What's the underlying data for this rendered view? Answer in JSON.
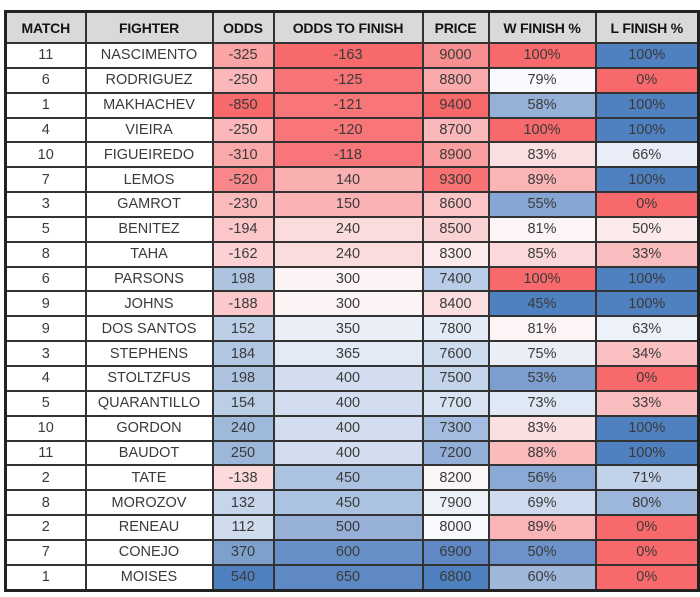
{
  "chart_data": {
    "type": "table",
    "title": "Fighter odds and finish percentages heatmap table",
    "legend_colors": {
      "low_extreme_red": "#F8696B",
      "midpoint_white": "#FCFCFF",
      "high_extreme_blue": "#4F80C0",
      "header_gray": "#D9D9D9"
    },
    "columns": [
      {
        "key": "match",
        "label": "MATCH"
      },
      {
        "key": "fighter",
        "label": "FIGHTER"
      },
      {
        "key": "odds",
        "label": "ODDS"
      },
      {
        "key": "odds_to_finish",
        "label": "ODDS TO FINISH"
      },
      {
        "key": "price",
        "label": "PRICE"
      },
      {
        "key": "w_finish",
        "label": "W FINISH %"
      },
      {
        "key": "l_finish",
        "label": "L FINISH %"
      }
    ],
    "rows": [
      {
        "cells": [
          {
            "v": "11",
            "bg": "#FFFFFF"
          },
          {
            "v": "NASCIMENTO",
            "bg": "#FFFFFF"
          },
          {
            "v": "-325",
            "bg": "#FAA4A6"
          },
          {
            "v": "-163",
            "bg": "#F8696B"
          },
          {
            "v": "9000",
            "bg": "#F98E90"
          },
          {
            "v": "100%",
            "bg": "#F8696B"
          },
          {
            "v": "100%",
            "bg": "#4F80C0"
          }
        ]
      },
      {
        "cells": [
          {
            "v": "6",
            "bg": "#FFFFFF"
          },
          {
            "v": "RODRIGUEZ",
            "bg": "#FFFFFF"
          },
          {
            "v": "-250",
            "bg": "#FBB7B9"
          },
          {
            "v": "-125",
            "bg": "#F87376"
          },
          {
            "v": "8800",
            "bg": "#FAAAAC"
          },
          {
            "v": "79%",
            "bg": "#F8FAFD"
          },
          {
            "v": "0%",
            "bg": "#F8696B"
          }
        ]
      },
      {
        "cells": [
          {
            "v": "1",
            "bg": "#FFFFFF"
          },
          {
            "v": "MAKHACHEV",
            "bg": "#FFFFFF"
          },
          {
            "v": "-850",
            "bg": "#F8696B"
          },
          {
            "v": "-121",
            "bg": "#F87578"
          },
          {
            "v": "9400",
            "bg": "#F8696B"
          },
          {
            "v": "58%",
            "bg": "#95B1D8"
          },
          {
            "v": "100%",
            "bg": "#4F80C0"
          }
        ]
      },
      {
        "cells": [
          {
            "v": "4",
            "bg": "#FFFFFF"
          },
          {
            "v": "VIEIRA",
            "bg": "#FFFFFF"
          },
          {
            "v": "-250",
            "bg": "#FBB7B9"
          },
          {
            "v": "-120",
            "bg": "#F87578"
          },
          {
            "v": "8700",
            "bg": "#FAB8BA"
          },
          {
            "v": "100%",
            "bg": "#F8696B"
          },
          {
            "v": "100%",
            "bg": "#4F80C0"
          }
        ]
      },
      {
        "cells": [
          {
            "v": "10",
            "bg": "#FFFFFF"
          },
          {
            "v": "FIGUEIREDO",
            "bg": "#FFFFFF"
          },
          {
            "v": "-310",
            "bg": "#FAA9AB"
          },
          {
            "v": "-118",
            "bg": "#F87679"
          },
          {
            "v": "8900",
            "bg": "#FA9EA0"
          },
          {
            "v": "83%",
            "bg": "#FBE0E2"
          },
          {
            "v": "66%",
            "bg": "#E8EDF8"
          }
        ]
      },
      {
        "cells": [
          {
            "v": "7",
            "bg": "#FFFFFF"
          },
          {
            "v": "LEMOS",
            "bg": "#FFFFFF"
          },
          {
            "v": "-520",
            "bg": "#F98688"
          },
          {
            "v": "140",
            "bg": "#FAAFB1"
          },
          {
            "v": "9300",
            "bg": "#F87173"
          },
          {
            "v": "89%",
            "bg": "#FAB4B6"
          },
          {
            "v": "100%",
            "bg": "#4F80C0"
          }
        ]
      },
      {
        "cells": [
          {
            "v": "3",
            "bg": "#FFFFFF"
          },
          {
            "v": "GAMROT",
            "bg": "#FFFFFF"
          },
          {
            "v": "-230",
            "bg": "#FBBBBD"
          },
          {
            "v": "150",
            "bg": "#FAB2B4"
          },
          {
            "v": "8600",
            "bg": "#FBC4C6"
          },
          {
            "v": "55%",
            "bg": "#86A6D3"
          },
          {
            "v": "0%",
            "bg": "#F8696B"
          }
        ]
      },
      {
        "cells": [
          {
            "v": "5",
            "bg": "#FFFFFF"
          },
          {
            "v": "BENITEZ",
            "bg": "#FFFFFF"
          },
          {
            "v": "-194",
            "bg": "#FBC7C9"
          },
          {
            "v": "240",
            "bg": "#FBDCDD"
          },
          {
            "v": "8500",
            "bg": "#FBD2D3"
          },
          {
            "v": "81%",
            "bg": "#FCF4F5"
          },
          {
            "v": "50%",
            "bg": "#FBEBEC"
          }
        ]
      },
      {
        "cells": [
          {
            "v": "8",
            "bg": "#FFFFFF"
          },
          {
            "v": "TAHA",
            "bg": "#FFFFFF"
          },
          {
            "v": "-162",
            "bg": "#FCD1D3"
          },
          {
            "v": "240",
            "bg": "#FBDCDD"
          },
          {
            "v": "8300",
            "bg": "#FCEBEC"
          },
          {
            "v": "85%",
            "bg": "#FBD8D9"
          },
          {
            "v": "33%",
            "bg": "#FABDBF"
          }
        ]
      },
      {
        "cells": [
          {
            "v": "6",
            "bg": "#FFFFFF"
          },
          {
            "v": "PARSONS",
            "bg": "#FFFFFF"
          },
          {
            "v": "198",
            "bg": "#ADC3E0"
          },
          {
            "v": "300",
            "bg": "#FCF3F4"
          },
          {
            "v": "7400",
            "bg": "#B9CDE8"
          },
          {
            "v": "100%",
            "bg": "#F8696B"
          },
          {
            "v": "100%",
            "bg": "#4F80C0"
          }
        ]
      },
      {
        "cells": [
          {
            "v": "9",
            "bg": "#FFFFFF"
          },
          {
            "v": "JOHNS",
            "bg": "#FFFFFF"
          },
          {
            "v": "-188",
            "bg": "#FBC9CB"
          },
          {
            "v": "300",
            "bg": "#FCF3F4"
          },
          {
            "v": "8400",
            "bg": "#FBDEDF"
          },
          {
            "v": "45%",
            "bg": "#4F80C0"
          },
          {
            "v": "100%",
            "bg": "#4F80C0"
          }
        ]
      },
      {
        "cells": [
          {
            "v": "9",
            "bg": "#FFFFFF"
          },
          {
            "v": "DOS SANTOS",
            "bg": "#FFFFFF"
          },
          {
            "v": "152",
            "bg": "#BDCFE6"
          },
          {
            "v": "350",
            "bg": "#E9EEF7"
          },
          {
            "v": "7800",
            "bg": "#E3EBF6"
          },
          {
            "v": "81%",
            "bg": "#FCF4F5"
          },
          {
            "v": "63%",
            "bg": "#EDF1FA"
          }
        ]
      },
      {
        "cells": [
          {
            "v": "3",
            "bg": "#FFFFFF"
          },
          {
            "v": "STEPHENS",
            "bg": "#FFFFFF"
          },
          {
            "v": "184",
            "bg": "#B2C7E2"
          },
          {
            "v": "365",
            "bg": "#E2EAF5"
          },
          {
            "v": "7600",
            "bg": "#CEDCEF"
          },
          {
            "v": "75%",
            "bg": "#E9EEF7"
          },
          {
            "v": "34%",
            "bg": "#FAC0C2"
          }
        ]
      },
      {
        "cells": [
          {
            "v": "4",
            "bg": "#FFFFFF"
          },
          {
            "v": "STOLTZFUS",
            "bg": "#FFFFFF"
          },
          {
            "v": "198",
            "bg": "#ADC3E0"
          },
          {
            "v": "400",
            "bg": "#D2DEF0"
          },
          {
            "v": "7500",
            "bg": "#C4D4EB"
          },
          {
            "v": "53%",
            "bg": "#7C9FD0"
          },
          {
            "v": "0%",
            "bg": "#F8696B"
          }
        ]
      },
      {
        "cells": [
          {
            "v": "5",
            "bg": "#FFFFFF"
          },
          {
            "v": "QUARANTILLO",
            "bg": "#FFFFFF"
          },
          {
            "v": "154",
            "bg": "#BCCEE6"
          },
          {
            "v": "400",
            "bg": "#D2DEF0"
          },
          {
            "v": "7700",
            "bg": "#D8E3F2"
          },
          {
            "v": "73%",
            "bg": "#DFE8F5"
          },
          {
            "v": "33%",
            "bg": "#FABDBF"
          }
        ]
      },
      {
        "cells": [
          {
            "v": "10",
            "bg": "#FFFFFF"
          },
          {
            "v": "GORDON",
            "bg": "#FFFFFF"
          },
          {
            "v": "240",
            "bg": "#9FB9DA"
          },
          {
            "v": "400",
            "bg": "#D2DEF0"
          },
          {
            "v": "7300",
            "bg": "#A4BCDF"
          },
          {
            "v": "83%",
            "bg": "#FBE0E2"
          },
          {
            "v": "100%",
            "bg": "#4F80C0"
          }
        ]
      },
      {
        "cells": [
          {
            "v": "11",
            "bg": "#FFFFFF"
          },
          {
            "v": "BAUDOT",
            "bg": "#FFFFFF"
          },
          {
            "v": "250",
            "bg": "#9CB7D9"
          },
          {
            "v": "400",
            "bg": "#D2DEF0"
          },
          {
            "v": "7200",
            "bg": "#93AED7"
          },
          {
            "v": "88%",
            "bg": "#FABBBD"
          },
          {
            "v": "100%",
            "bg": "#4F80C0"
          }
        ]
      },
      {
        "cells": [
          {
            "v": "2",
            "bg": "#FFFFFF"
          },
          {
            "v": "TATE",
            "bg": "#FFFFFF"
          },
          {
            "v": "-138",
            "bg": "#FCD9DB"
          },
          {
            "v": "450",
            "bg": "#ABC2E0"
          },
          {
            "v": "8200",
            "bg": "#FCF5F6"
          },
          {
            "v": "56%",
            "bg": "#8BA9D5"
          },
          {
            "v": "71%",
            "bg": "#C2D2EB"
          }
        ]
      },
      {
        "cells": [
          {
            "v": "8",
            "bg": "#FFFFFF"
          },
          {
            "v": "MOROZOV",
            "bg": "#FFFFFF"
          },
          {
            "v": "132",
            "bg": "#C6D5EA"
          },
          {
            "v": "450",
            "bg": "#ABC2E0"
          },
          {
            "v": "7900",
            "bg": "#EDF2F9"
          },
          {
            "v": "69%",
            "bg": "#CEDBEF"
          },
          {
            "v": "80%",
            "bg": "#9DB6DB"
          }
        ]
      },
      {
        "cells": [
          {
            "v": "2",
            "bg": "#FFFFFF"
          },
          {
            "v": "RENEAU",
            "bg": "#FFFFFF"
          },
          {
            "v": "112",
            "bg": "#CFDCEE"
          },
          {
            "v": "500",
            "bg": "#96B0D8"
          },
          {
            "v": "8000",
            "bg": "#F7F9FD"
          },
          {
            "v": "89%",
            "bg": "#FAB4B6"
          },
          {
            "v": "0%",
            "bg": "#F8696B"
          }
        ]
      },
      {
        "cells": [
          {
            "v": "7",
            "bg": "#FFFFFF"
          },
          {
            "v": "CONEJO",
            "bg": "#FFFFFF"
          },
          {
            "v": "370",
            "bg": "#7EA0CC"
          },
          {
            "v": "600",
            "bg": "#6890C8"
          },
          {
            "v": "6900",
            "bg": "#5F88C4"
          },
          {
            "v": "50%",
            "bg": "#6C93C9"
          },
          {
            "v": "0%",
            "bg": "#F8696B"
          }
        ]
      },
      {
        "cells": [
          {
            "v": "1",
            "bg": "#FFFFFF"
          },
          {
            "v": "MOISES",
            "bg": "#FFFFFF"
          },
          {
            "v": "540",
            "bg": "#4F80C0"
          },
          {
            "v": "650",
            "bg": "#5E89C4"
          },
          {
            "v": "6800",
            "bg": "#4F80C0"
          },
          {
            "v": "60%",
            "bg": "#9EB7DB"
          },
          {
            "v": "0%",
            "bg": "#F8696B"
          }
        ]
      }
    ]
  }
}
